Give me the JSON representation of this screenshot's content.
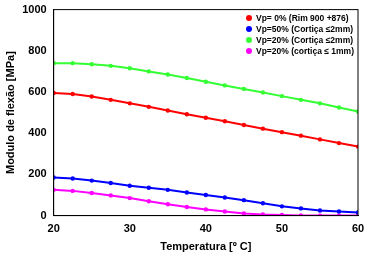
{
  "chart_data": {
    "type": "line",
    "x_label": "Temperatura [º C]",
    "y_label": "Modulo de flexão [MPa]",
    "x": [
      20,
      22.5,
      25,
      27.5,
      30,
      32.5,
      35,
      37.5,
      40,
      42.5,
      45,
      47.5,
      50,
      52.5,
      55,
      57.5,
      60
    ],
    "series": [
      {
        "name": "Vp= 0% (Rim 900 +876)",
        "color": "#ff0000",
        "values": [
          595,
          590,
          578,
          562,
          545,
          528,
          510,
          492,
          475,
          458,
          440,
          422,
          405,
          388,
          370,
          352,
          335
        ]
      },
      {
        "name": "Vp=50% (Cortiça ≤2mm)",
        "color": "#0000ff",
        "values": [
          185,
          180,
          170,
          158,
          145,
          135,
          125,
          112,
          100,
          88,
          75,
          60,
          45,
          35,
          25,
          20,
          15
        ]
      },
      {
        "name": "Vp=20% (Cortiça ≤2mm)",
        "color": "#33ff33",
        "values": [
          740,
          740,
          735,
          727,
          715,
          700,
          685,
          668,
          650,
          632,
          615,
          598,
          580,
          562,
          545,
          525,
          505
        ]
      },
      {
        "name": "Vp=20% (cortiça ≤ 1mm)",
        "color": "#ff00ff",
        "values": [
          125,
          120,
          110,
          98,
          85,
          70,
          55,
          42,
          30,
          20,
          10,
          5,
          3,
          1,
          0,
          0,
          0
        ]
      }
    ],
    "xlim": [
      20,
      60
    ],
    "xticks": [
      20,
      30,
      40,
      50,
      60
    ],
    "ylim": [
      0,
      1000
    ],
    "yticks": [
      0,
      200,
      400,
      600,
      800,
      1000
    ],
    "grid": false,
    "legend": "upper right",
    "marker": "circle",
    "line_style": "solid"
  }
}
